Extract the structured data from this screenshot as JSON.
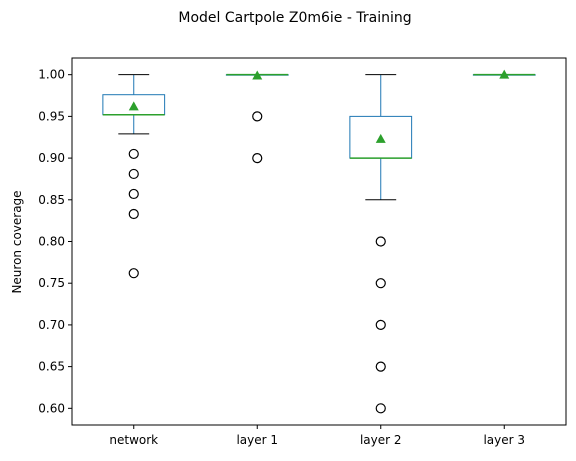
{
  "chart_data": {
    "type": "box",
    "title": "Model Cartpole Z0m6ie - Training",
    "xlabel": "",
    "ylabel": "Neuron coverage",
    "ylim": [
      0.58,
      1.02
    ],
    "yticks": [
      0.6,
      0.65,
      0.7,
      0.75,
      0.8,
      0.85,
      0.9,
      0.95,
      1.0
    ],
    "ytick_labels": [
      "0.60",
      "0.65",
      "0.70",
      "0.75",
      "0.80",
      "0.85",
      "0.90",
      "0.95",
      "1.00"
    ],
    "categories": [
      "network",
      "layer 1",
      "layer 2",
      "layer 3"
    ],
    "grid": false,
    "box_color": "#1f77b4",
    "median_color": "#2ca02c",
    "mean_color": "#2ca02c",
    "whisker_color": "#000000",
    "outlier_color": "#000000",
    "boxes": [
      {
        "whislo": 0.929,
        "q1": 0.952,
        "med": 0.952,
        "q3": 0.976,
        "whishi": 1.0,
        "mean": 0.962,
        "outliers": [
          0.905,
          0.881,
          0.857,
          0.833,
          0.762
        ]
      },
      {
        "whislo": 1.0,
        "q1": 1.0,
        "med": 1.0,
        "q3": 1.0,
        "whishi": 1.0,
        "mean": 0.999,
        "outliers": [
          0.95,
          0.9
        ]
      },
      {
        "whislo": 0.85,
        "q1": 0.9,
        "med": 0.9,
        "q3": 0.95,
        "whishi": 1.0,
        "mean": 0.923,
        "outliers": [
          0.8,
          0.75,
          0.7,
          0.65,
          0.6
        ]
      },
      {
        "whislo": 1.0,
        "q1": 1.0,
        "med": 1.0,
        "q3": 1.0,
        "whishi": 1.0,
        "mean": 1.0,
        "outliers": []
      }
    ]
  }
}
